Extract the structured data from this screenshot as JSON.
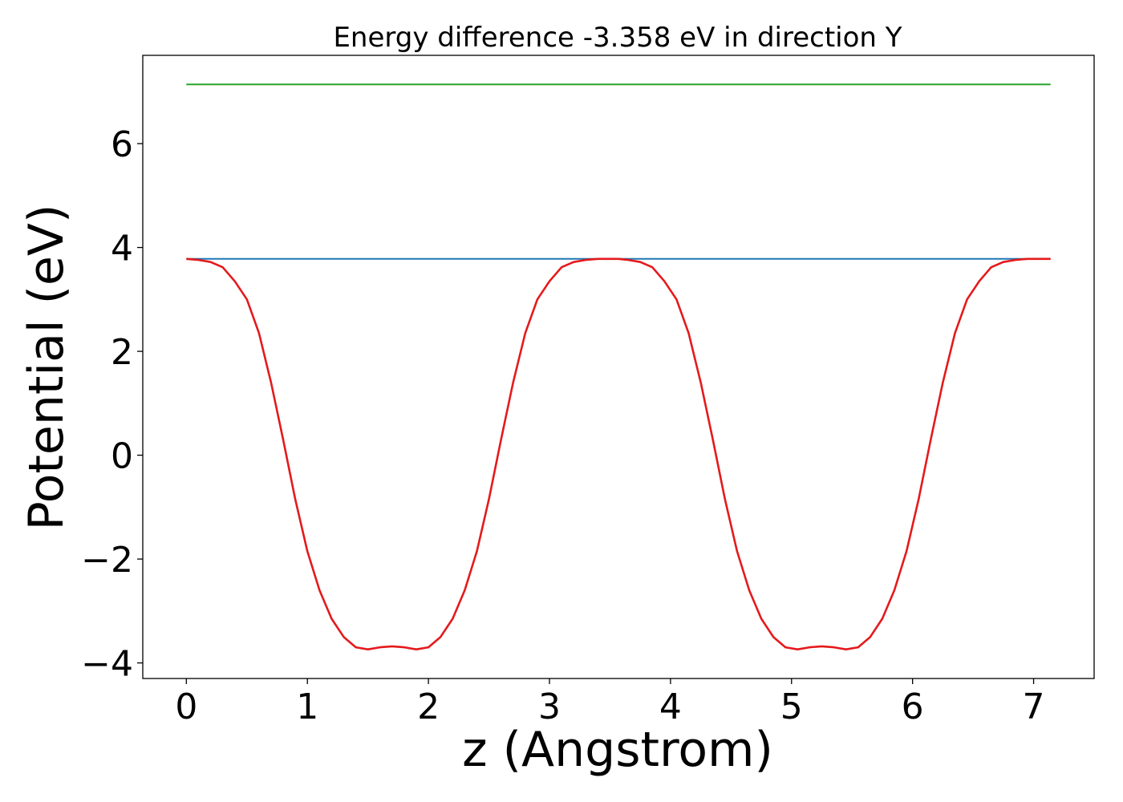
{
  "chart_data": {
    "type": "line",
    "title": "Energy difference -3.358 eV in direction Y",
    "xlabel": "z (Angstrom)",
    "ylabel": "Potential (eV)",
    "xlim": [
      -0.36,
      7.5
    ],
    "ylim": [
      -4.3,
      7.7
    ],
    "x_ticks": [
      0,
      1,
      2,
      3,
      4,
      5,
      6,
      7
    ],
    "y_ticks": [
      -4,
      -2,
      0,
      2,
      4,
      6
    ],
    "x_tick_labels": [
      "0",
      "1",
      "2",
      "3",
      "4",
      "5",
      "6",
      "7"
    ],
    "y_tick_labels": [
      "−4",
      "−2",
      "0",
      "2",
      "4",
      "6"
    ],
    "grid": false,
    "series": [
      {
        "color": "#2ca02c",
        "x": [
          0,
          7.14
        ],
        "y": [
          7.14,
          7.14
        ]
      },
      {
        "color": "#1f77b4",
        "x": [
          0,
          7.14
        ],
        "y": [
          3.78,
          3.78
        ]
      },
      {
        "color": "#e41a1c",
        "x": [
          0,
          0.1,
          0.2,
          0.3,
          0.4,
          0.5,
          0.6,
          0.7,
          0.8,
          0.9,
          1.0,
          1.1,
          1.2,
          1.3,
          1.4,
          1.5,
          1.6,
          1.7,
          1.8,
          1.9,
          2.0,
          2.1,
          2.2,
          2.3,
          2.4,
          2.5,
          2.6,
          2.7,
          2.8,
          2.9,
          3.0,
          3.1,
          3.2,
          3.3,
          3.4,
          3.5,
          3.57,
          3.65,
          3.75,
          3.85,
          3.95,
          4.05,
          4.15,
          4.25,
          4.35,
          4.45,
          4.55,
          4.65,
          4.75,
          4.85,
          4.95,
          5.05,
          5.15,
          5.25,
          5.35,
          5.45,
          5.55,
          5.65,
          5.75,
          5.85,
          5.95,
          6.05,
          6.15,
          6.25,
          6.35,
          6.45,
          6.55,
          6.65,
          6.75,
          6.85,
          6.95,
          7.05,
          7.14
        ],
        "y": [
          3.78,
          3.76,
          3.72,
          3.62,
          3.35,
          3.0,
          2.35,
          1.4,
          0.3,
          -0.85,
          -1.85,
          -2.6,
          -3.15,
          -3.5,
          -3.7,
          -3.74,
          -3.7,
          -3.68,
          -3.7,
          -3.74,
          -3.7,
          -3.5,
          -3.15,
          -2.6,
          -1.85,
          -0.85,
          0.3,
          1.4,
          2.35,
          3.0,
          3.35,
          3.62,
          3.72,
          3.76,
          3.78,
          3.78,
          3.78,
          3.76,
          3.72,
          3.62,
          3.35,
          3.0,
          2.35,
          1.4,
          0.3,
          -0.85,
          -1.85,
          -2.6,
          -3.15,
          -3.5,
          -3.7,
          -3.74,
          -3.7,
          -3.68,
          -3.7,
          -3.74,
          -3.7,
          -3.5,
          -3.15,
          -2.6,
          -1.85,
          -0.85,
          0.3,
          1.4,
          2.35,
          3.0,
          3.35,
          3.62,
          3.72,
          3.76,
          3.78,
          3.78,
          3.78
        ]
      }
    ]
  }
}
